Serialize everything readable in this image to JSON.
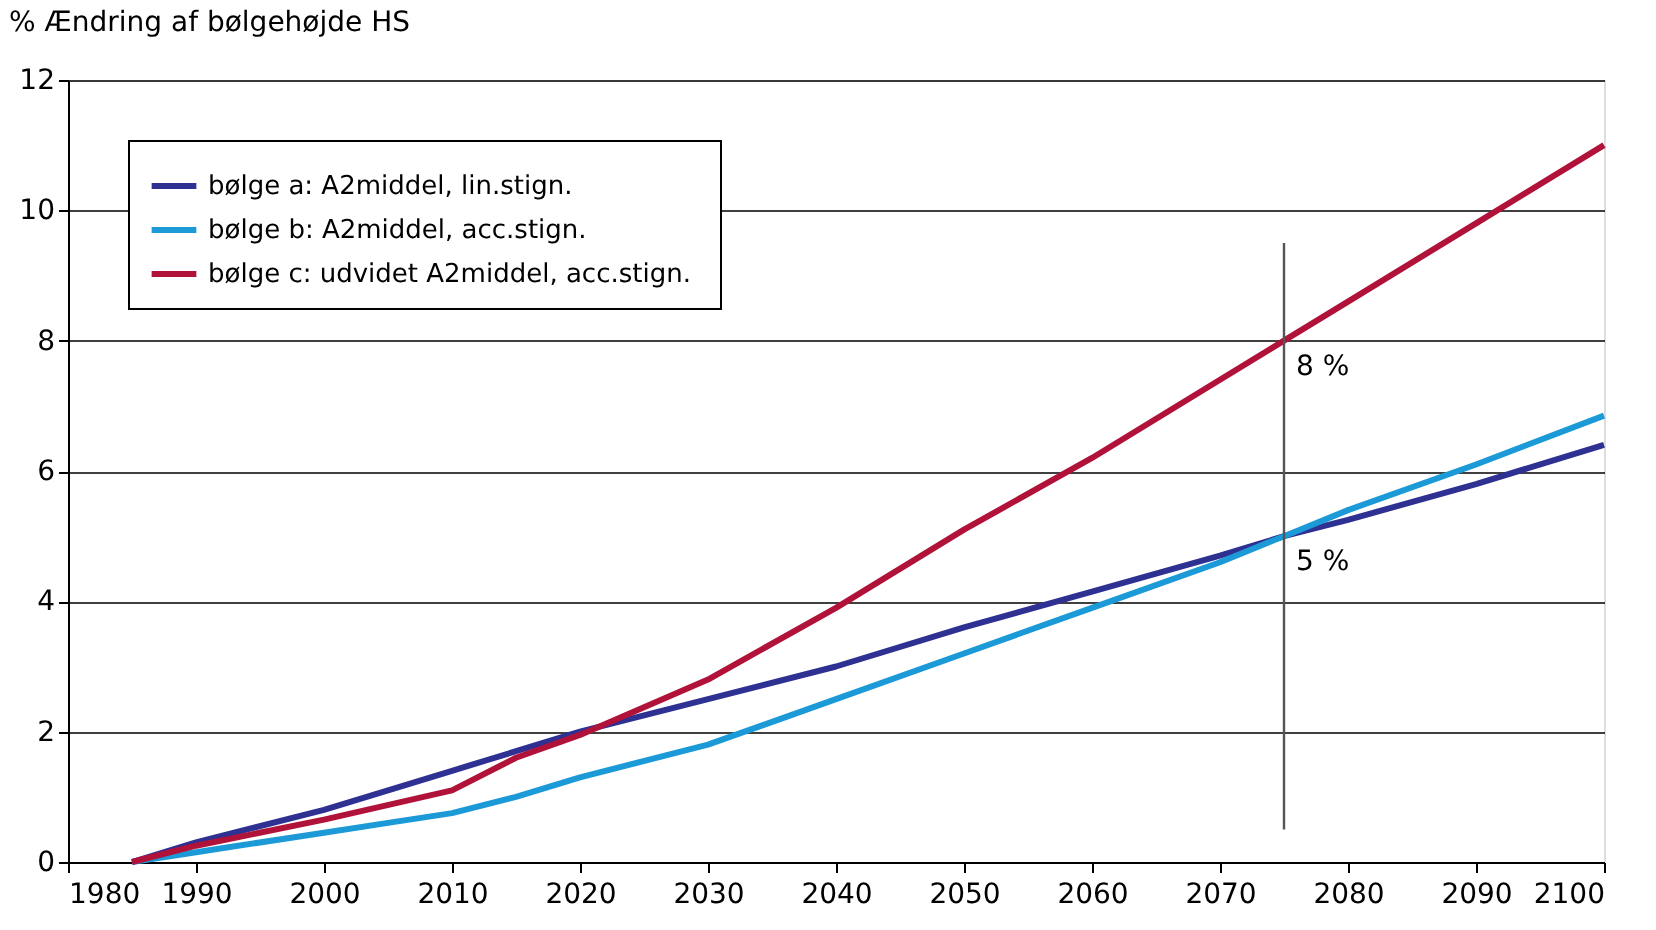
{
  "chart_data": {
    "type": "line",
    "ylabel": "% Ændring af bølgehøjde HS",
    "xlim": [
      1980,
      2100
    ],
    "xticks": [
      1980,
      1990,
      2000,
      2010,
      2020,
      2030,
      2040,
      2050,
      2060,
      2070,
      2080,
      2090,
      2100
    ],
    "ylim": [
      0,
      12
    ],
    "yticks": [
      0,
      2,
      4,
      6,
      8,
      10,
      12
    ],
    "grid": "y",
    "legend": "top left",
    "marker": "none",
    "line_style": "solid",
    "series": [
      {
        "name": "bølge a:  A2middel, lin.stign.",
        "color": "#2e3192",
        "x": [
          1985,
          1990,
          2000,
          2010,
          2015,
          2020,
          2030,
          2040,
          2050,
          2060,
          2070,
          2075,
          2080,
          2090,
          2100
        ],
        "values": [
          0,
          0.3,
          0.8,
          1.4,
          1.7,
          2.0,
          2.5,
          3.0,
          3.6,
          4.15,
          4.7,
          5.0,
          5.25,
          5.8,
          6.4
        ]
      },
      {
        "name": "bølge b:  A2middel, acc.stign.",
        "color": "#1b9ad7",
        "x": [
          1985,
          1990,
          2000,
          2005,
          2010,
          2015,
          2020,
          2030,
          2040,
          2050,
          2060,
          2070,
          2075,
          2080,
          2090,
          2100
        ],
        "values": [
          0,
          0.15,
          0.45,
          0.6,
          0.75,
          1.0,
          1.3,
          1.8,
          2.5,
          3.2,
          3.9,
          4.6,
          5.0,
          5.4,
          6.1,
          6.85
        ]
      },
      {
        "name": "bølge c:  udvidet A2middel, acc.stign.",
        "color": "#b0123a",
        "x": [
          1985,
          1990,
          2000,
          2010,
          2015,
          2020,
          2030,
          2040,
          2050,
          2060,
          2070,
          2075,
          2080,
          2090,
          2100
        ],
        "values": [
          0,
          0.25,
          0.65,
          1.1,
          1.6,
          1.95,
          2.8,
          3.9,
          5.1,
          6.2,
          7.4,
          8.0,
          8.6,
          9.8,
          11.0
        ]
      },
      {
        "color": "#555555",
        "type": "line",
        "x": [
          2075,
          2075
        ],
        "values": [
          0.5,
          9.5
        ]
      }
    ],
    "annotations": [
      {
        "text": "8 %",
        "x": 2075,
        "y": 8
      },
      {
        "text": "5 %",
        "x": 2075,
        "y": 5
      }
    ]
  }
}
